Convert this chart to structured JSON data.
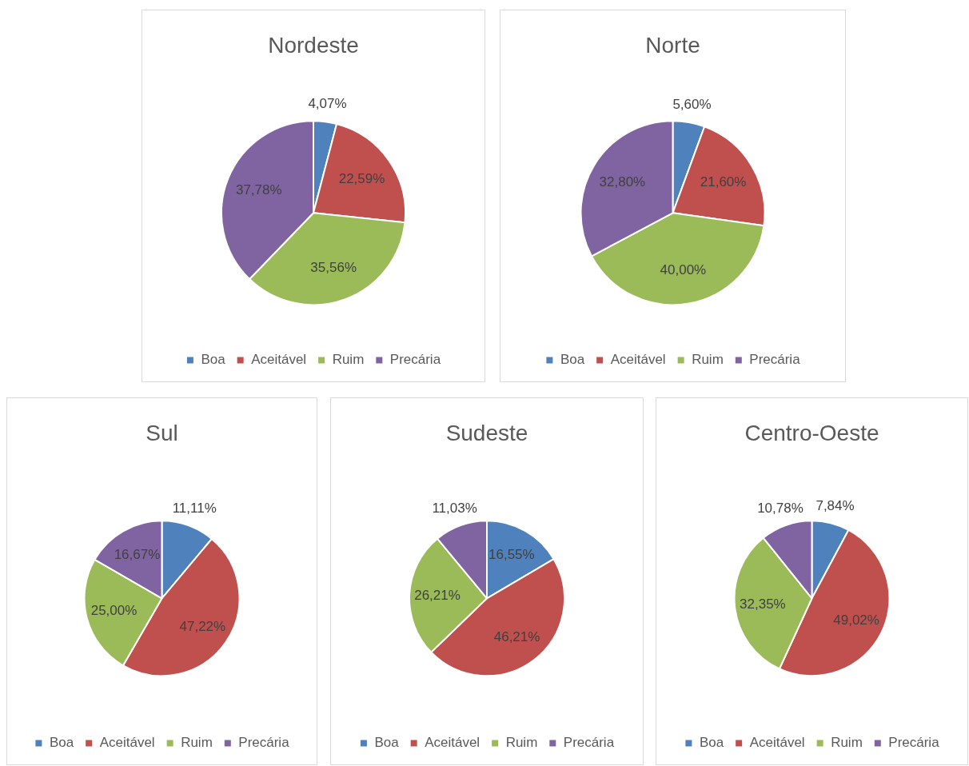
{
  "chart_data": [
    {
      "type": "pie",
      "title": "Nordeste",
      "categories": [
        "Boa",
        "Aceitável",
        "Ruim",
        "Precária"
      ],
      "values": [
        4.07,
        22.59,
        35.56,
        37.78
      ],
      "value_labels": [
        "4,07%",
        "22,59%",
        "35,56%",
        "37,78%"
      ],
      "colors": [
        "#4f81bd",
        "#c0504d",
        "#9bbb59",
        "#8064a2"
      ],
      "legend": "bottom"
    },
    {
      "type": "pie",
      "title": "Norte",
      "categories": [
        "Boa",
        "Aceitável",
        "Ruim",
        "Precária"
      ],
      "values": [
        5.6,
        21.6,
        40.0,
        32.8
      ],
      "value_labels": [
        "5,60%",
        "21,60%",
        "40,00%",
        "32,80%"
      ],
      "colors": [
        "#4f81bd",
        "#c0504d",
        "#9bbb59",
        "#8064a2"
      ],
      "legend": "bottom"
    },
    {
      "type": "pie",
      "title": "Sul",
      "categories": [
        "Boa",
        "Aceitável",
        "Ruim",
        "Precária"
      ],
      "values": [
        11.11,
        47.22,
        25.0,
        16.67
      ],
      "value_labels": [
        "11,11%",
        "47,22%",
        "25,00%",
        "16,67%"
      ],
      "colors": [
        "#4f81bd",
        "#c0504d",
        "#9bbb59",
        "#8064a2"
      ],
      "legend": "bottom"
    },
    {
      "type": "pie",
      "title": "Sudeste",
      "categories": [
        "Boa",
        "Aceitável",
        "Ruim",
        "Precária"
      ],
      "values": [
        16.55,
        46.21,
        26.21,
        11.03
      ],
      "value_labels": [
        "16,55%",
        "46,21%",
        "26,21%",
        "11,03%"
      ],
      "colors": [
        "#4f81bd",
        "#c0504d",
        "#9bbb59",
        "#8064a2"
      ],
      "legend": "bottom"
    },
    {
      "type": "pie",
      "title": "Centro-Oeste",
      "categories": [
        "Boa",
        "Aceitável",
        "Ruim",
        "Precária"
      ],
      "values": [
        7.84,
        49.02,
        32.35,
        10.78
      ],
      "value_labels": [
        "7,84%",
        "49,02%",
        "32,35%",
        "10,78%"
      ],
      "colors": [
        "#4f81bd",
        "#c0504d",
        "#9bbb59",
        "#8064a2"
      ],
      "legend": "bottom"
    }
  ]
}
